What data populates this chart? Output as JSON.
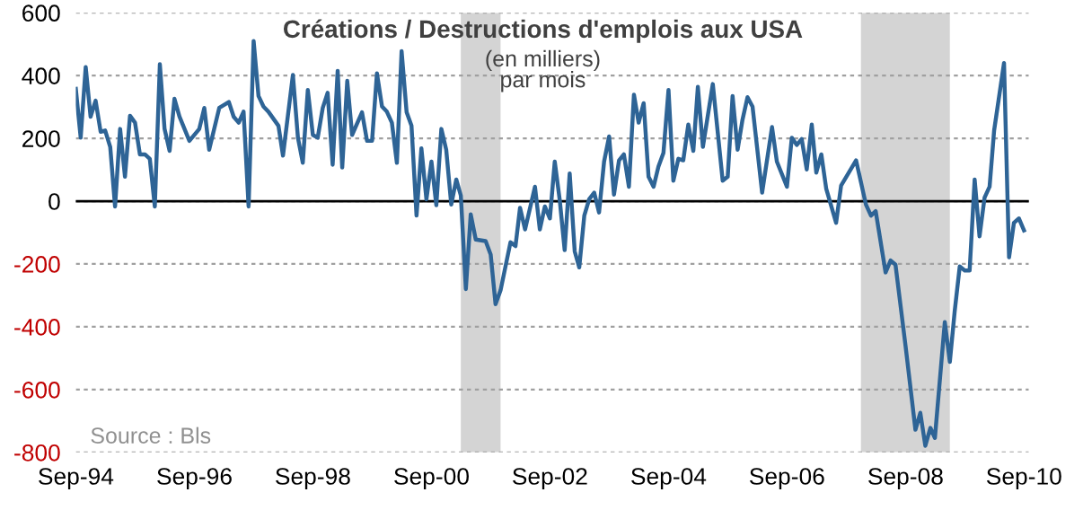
{
  "chart_data": {
    "type": "line",
    "title": "Créations / Destructions d'emplois aux USA",
    "subtitle": "(en milliers)\npar mois",
    "annotations": [
      "Source : Bls"
    ],
    "x": [
      "1994-09",
      "1994-10",
      "1994-11",
      "1994-12",
      "1995-01",
      "1995-02",
      "1995-03",
      "1995-04",
      "1995-05",
      "1995-06",
      "1995-07",
      "1995-08",
      "1995-09",
      "1995-10",
      "1995-11",
      "1995-12",
      "1996-01",
      "1996-02",
      "1996-03",
      "1996-04",
      "1996-05",
      "1996-06",
      "1996-08",
      "1996-10",
      "1996-11",
      "1996-12",
      "1997-02",
      "1997-04",
      "1997-05",
      "1997-06",
      "1997-07",
      "1997-08",
      "1997-09",
      "1997-10",
      "1997-11",
      "1997-12",
      "1998-02",
      "1998-03",
      "1998-05",
      "1998-06",
      "1998-07",
      "1998-08",
      "1998-09",
      "1998-10",
      "1998-11",
      "1998-12",
      "1999-01",
      "1999-02",
      "1999-03",
      "1999-04",
      "1999-05",
      "1999-07",
      "1999-08",
      "1999-09",
      "1999-10",
      "1999-11",
      "1999-12",
      "2000-01",
      "2000-02",
      "2000-03",
      "2000-04",
      "2000-05",
      "2000-06",
      "2000-07",
      "2000-08",
      "2000-09",
      "2000-10",
      "2000-11",
      "2000-12",
      "2001-01",
      "2001-02",
      "2001-03",
      "2001-04",
      "2001-05",
      "2001-06",
      "2001-08",
      "2001-09",
      "2001-10",
      "2001-11",
      "2002-01",
      "2002-02",
      "2002-03",
      "2002-04",
      "2002-06",
      "2002-07",
      "2002-08",
      "2002-09",
      "2002-10",
      "2002-11",
      "2002-12",
      "2003-01",
      "2003-02",
      "2003-03",
      "2003-04",
      "2003-05",
      "2003-06",
      "2003-07",
      "2003-08",
      "2003-09",
      "2003-10",
      "2003-11",
      "2003-12",
      "2004-01",
      "2004-02",
      "2004-03",
      "2004-04",
      "2004-05",
      "2004-06",
      "2004-07",
      "2004-08",
      "2004-09",
      "2004-10",
      "2004-11",
      "2004-12",
      "2005-01",
      "2005-02",
      "2005-03",
      "2005-04",
      "2005-06",
      "2005-08",
      "2005-09",
      "2005-10",
      "2005-11",
      "2005-12",
      "2006-01",
      "2006-02",
      "2006-04",
      "2006-06",
      "2006-07",
      "2006-09",
      "2006-10",
      "2006-11",
      "2006-12",
      "2007-01",
      "2007-02",
      "2007-03",
      "2007-04",
      "2007-05",
      "2007-07",
      "2007-08",
      "2007-11",
      "2008-01",
      "2008-02",
      "2008-03",
      "2008-05",
      "2008-06",
      "2008-07",
      "2008-09",
      "2008-11",
      "2008-12",
      "2009-01",
      "2009-02",
      "2009-03",
      "2009-05",
      "2009-06",
      "2009-07",
      "2009-08",
      "2009-09",
      "2009-10",
      "2009-11",
      "2009-12",
      "2010-01",
      "2010-02",
      "2010-03",
      "2010-05",
      "2010-06",
      "2010-07",
      "2010-08",
      "2010-09"
    ],
    "series": [
      {
        "color": "#2e6496",
        "values": [
          358,
          202,
          427,
          269,
          320,
          221,
          225,
          173,
          -17,
          230,
          78,
          272,
          250,
          149,
          149,
          135,
          -17,
          436,
          230,
          160,
          326,
          269,
          192,
          230,
          297,
          164,
          297,
          316,
          269,
          250,
          285,
          -17,
          510,
          335,
          301,
          285,
          240,
          145,
          402,
          202,
          122,
          354,
          211,
          202,
          297,
          345,
          116,
          415,
          107,
          383,
          211,
          283,
          192,
          192,
          407,
          302,
          285,
          250,
          122,
          478,
          283,
          240,
          -46,
          168,
          6,
          126,
          -13,
          230,
          164,
          -11,
          69,
          18,
          -280,
          -42,
          -122,
          -127,
          -170,
          -328,
          -284,
          -131,
          -143,
          -21,
          -90,
          46,
          -90,
          -17,
          -55,
          126,
          2,
          -156,
          88,
          -160,
          -211,
          -46,
          6,
          27,
          -36,
          126,
          206,
          21,
          130,
          149,
          46,
          339,
          250,
          312,
          78,
          46,
          110,
          154,
          354,
          65,
          135,
          130,
          244,
          160,
          364,
          173,
          373,
          65,
          78,
          335,
          164,
          259,
          331,
          301,
          27,
          236,
          126,
          46,
          202,
          179,
          198,
          101,
          244,
          91,
          149,
          40,
          -69,
          50,
          130,
          -11,
          -46,
          -32,
          -227,
          -189,
          -202,
          -461,
          -728,
          -674,
          -779,
          -722,
          -754,
          -385,
          -512,
          -350,
          -208,
          -221,
          -221,
          69,
          -112,
          11,
          46,
          225,
          440,
          -179,
          -69,
          -55,
          -93
        ]
      }
    ],
    "xlim": [
      "1994-09",
      "2010-10"
    ],
    "xticks": [
      {
        "value": "1994-09",
        "label": "Sep-94"
      },
      {
        "value": "1996-09",
        "label": "Sep-96"
      },
      {
        "value": "1998-09",
        "label": "Sep-98"
      },
      {
        "value": "2000-09",
        "label": "Sep-00"
      },
      {
        "value": "2002-09",
        "label": "Sep-02"
      },
      {
        "value": "2004-09",
        "label": "Sep-04"
      },
      {
        "value": "2006-09",
        "label": "Sep-06"
      },
      {
        "value": "2008-09",
        "label": "Sep-08"
      },
      {
        "value": "2010-09",
        "label": "Sep-10"
      }
    ],
    "ylim": [
      -800,
      600
    ],
    "yticks": [
      -800,
      -600,
      -400,
      -200,
      0,
      200,
      400,
      600
    ],
    "grid": "y",
    "line_style": "solid",
    "marker": "none",
    "legend": false,
    "ref_lines": [
      {
        "axis": "y",
        "value": 0,
        "color": "#000000",
        "line_style": "solid"
      }
    ],
    "bands": [
      {
        "axis": "x",
        "from": "2001-03",
        "to": "2001-11",
        "color": "#d4d4d4"
      },
      {
        "axis": "x",
        "from": "2007-12",
        "to": "2009-06",
        "color": "#d4d4d4"
      }
    ]
  }
}
